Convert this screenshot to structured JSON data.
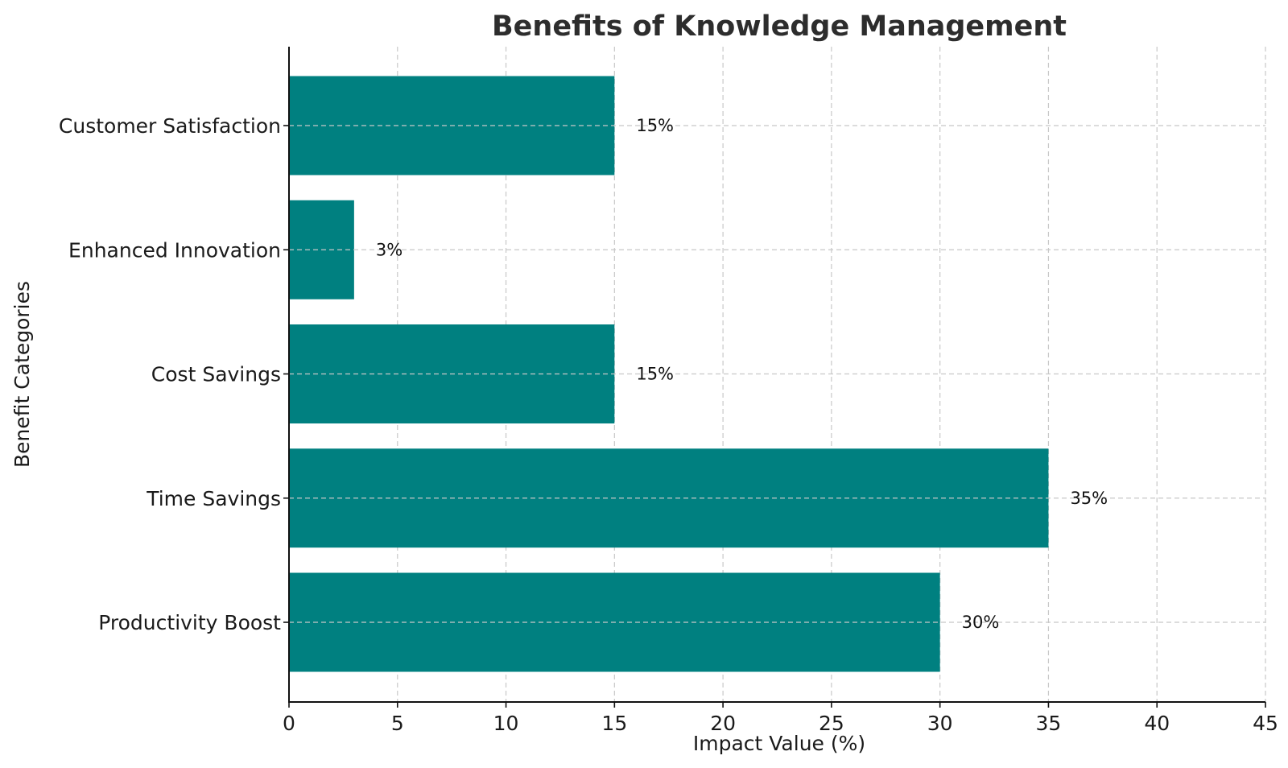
{
  "chart_data": {
    "type": "bar",
    "orientation": "horizontal",
    "title": "Benefits of Knowledge Management",
    "xlabel": "Impact Value (%)",
    "ylabel": "Benefit Categories",
    "categories": [
      "Productivity Boost",
      "Time Savings",
      "Cost Savings",
      "Enhanced Innovation",
      "Customer Satisfaction"
    ],
    "values": [
      30,
      35,
      15,
      3,
      15
    ],
    "data_labels": [
      "30%",
      "35%",
      "15%",
      "3%",
      "15%"
    ],
    "xlim": [
      0,
      45
    ],
    "xticks": [
      0,
      5,
      10,
      15,
      20,
      25,
      30,
      35,
      40,
      45
    ],
    "grid": true,
    "bar_color": "#008080"
  }
}
